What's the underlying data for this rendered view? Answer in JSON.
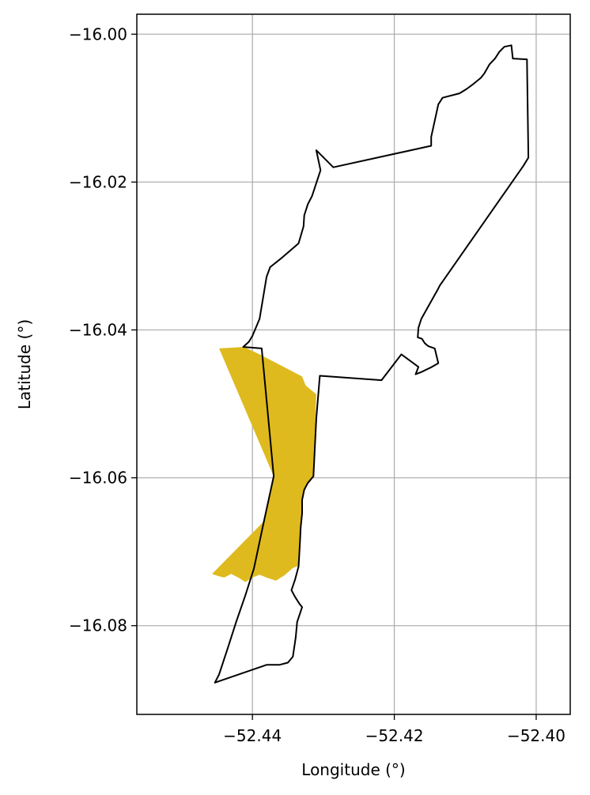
{
  "chart_data": {
    "type": "map",
    "xlabel": "Longitude (°)",
    "ylabel": "Latitude (°)",
    "xlim": [
      -52.4563,
      -52.3952
    ],
    "ylim": [
      -16.092,
      -15.9973
    ],
    "xticks": [
      -52.44,
      -52.42,
      -52.4
    ],
    "yticks": [
      -16.0,
      -16.02,
      -16.04,
      -16.06,
      -16.08
    ],
    "xtick_labels": [
      "−52.44",
      "−52.42",
      "−52.40"
    ],
    "ytick_labels": [
      "−16.00",
      "−16.02",
      "−16.04",
      "−16.06",
      "−16.08"
    ],
    "grid": true,
    "outline": {
      "color": "#000000",
      "points": [
        [
          -52.4453,
          -16.0877
        ],
        [
          -52.4447,
          -16.0866
        ],
        [
          -52.4435,
          -16.0831
        ],
        [
          -52.4423,
          -16.0795
        ],
        [
          -52.441,
          -16.0759
        ],
        [
          -52.4398,
          -16.0723
        ],
        [
          -52.4384,
          -16.066
        ],
        [
          -52.437,
          -16.0598
        ],
        [
          -52.4387,
          -16.0425
        ],
        [
          -52.4413,
          -16.0423
        ],
        [
          -52.4405,
          -16.0416
        ],
        [
          -52.44,
          -16.0408
        ],
        [
          -52.439,
          -16.0385
        ],
        [
          -52.438,
          -16.0328
        ],
        [
          -52.4375,
          -16.0315
        ],
        [
          -52.4358,
          -16.0302
        ],
        [
          -52.4335,
          -16.0283
        ],
        [
          -52.4328,
          -16.026
        ],
        [
          -52.4327,
          -16.0245
        ],
        [
          -52.4322,
          -16.023
        ],
        [
          -52.4316,
          -16.0219
        ],
        [
          -52.4304,
          -16.0184
        ],
        [
          -52.431,
          -16.0157
        ],
        [
          -52.4286,
          -16.018
        ],
        [
          -52.4148,
          -16.0151
        ],
        [
          -52.4148,
          -16.0139
        ],
        [
          -52.4138,
          -16.0095
        ],
        [
          -52.4132,
          -16.0086
        ],
        [
          -52.4108,
          -16.008
        ],
        [
          -52.4098,
          -16.0074
        ],
        [
          -52.4088,
          -16.0067
        ],
        [
          -52.4078,
          -16.0059
        ],
        [
          -52.4073,
          -16.0053
        ],
        [
          -52.4066,
          -16.0041
        ],
        [
          -52.4058,
          -16.0033
        ],
        [
          -52.4052,
          -16.0024
        ],
        [
          -52.4045,
          -16.0017
        ],
        [
          -52.4035,
          -16.0015
        ],
        [
          -52.4033,
          -16.0033
        ],
        [
          -52.4013,
          -16.0034
        ],
        [
          -52.4011,
          -16.0167
        ],
        [
          -52.4018,
          -16.0178
        ],
        [
          -52.4136,
          -16.034
        ],
        [
          -52.4138,
          -16.0344
        ],
        [
          -52.4162,
          -16.0385
        ],
        [
          -52.4166,
          -16.0397
        ],
        [
          -52.4167,
          -16.041
        ],
        [
          -52.4161,
          -16.0412
        ],
        [
          -52.4157,
          -16.0418
        ],
        [
          -52.4152,
          -16.0422
        ],
        [
          -52.4143,
          -16.0425
        ],
        [
          -52.4138,
          -16.0445
        ],
        [
          -52.4147,
          -16.045
        ],
        [
          -52.4162,
          -16.0457
        ],
        [
          -52.417,
          -16.046
        ],
        [
          -52.4166,
          -16.045
        ],
        [
          -52.419,
          -16.0433
        ],
        [
          -52.4218,
          -16.0468
        ],
        [
          -52.4305,
          -16.0462
        ],
        [
          -52.431,
          -16.052
        ],
        [
          -52.4314,
          -16.0598
        ],
        [
          -52.4322,
          -16.0607
        ],
        [
          -52.4327,
          -16.0616
        ],
        [
          -52.433,
          -16.063
        ],
        [
          -52.433,
          -16.0648
        ],
        [
          -52.4332,
          -16.0667
        ],
        [
          -52.4333,
          -16.0687
        ],
        [
          -52.4334,
          -16.0704
        ],
        [
          -52.4335,
          -16.072
        ],
        [
          -52.434,
          -16.0738
        ],
        [
          -52.4345,
          -16.0752
        ],
        [
          -52.434,
          -16.0761
        ],
        [
          -52.4334,
          -16.077
        ],
        [
          -52.433,
          -16.0775
        ],
        [
          -52.4337,
          -16.0795
        ],
        [
          -52.4339,
          -16.0816
        ],
        [
          -52.4343,
          -16.0842
        ],
        [
          -52.435,
          -16.085
        ],
        [
          -52.4362,
          -16.0853
        ],
        [
          -52.438,
          -16.0853
        ],
        [
          -52.4453,
          -16.0877
        ]
      ]
    },
    "highlight": {
      "color": "#dfba1f",
      "points": [
        [
          -52.4447,
          -16.0425
        ],
        [
          -52.4412,
          -16.0423
        ],
        [
          -52.439,
          -16.0433
        ],
        [
          -52.436,
          -16.0448
        ],
        [
          -52.433,
          -16.0463
        ],
        [
          -52.4325,
          -16.0475
        ],
        [
          -52.431,
          -16.0487
        ],
        [
          -52.4314,
          -16.0598
        ],
        [
          -52.4322,
          -16.0607
        ],
        [
          -52.4327,
          -16.0616
        ],
        [
          -52.433,
          -16.063
        ],
        [
          -52.433,
          -16.0648
        ],
        [
          -52.4332,
          -16.0667
        ],
        [
          -52.4333,
          -16.0687
        ],
        [
          -52.4334,
          -16.0704
        ],
        [
          -52.4335,
          -16.0719
        ],
        [
          -52.4343,
          -16.0722
        ],
        [
          -52.4355,
          -16.0732
        ],
        [
          -52.4367,
          -16.0739
        ],
        [
          -52.438,
          -16.0735
        ],
        [
          -52.439,
          -16.0731
        ],
        [
          -52.44,
          -16.0735
        ],
        [
          -52.441,
          -16.0741
        ],
        [
          -52.442,
          -16.0735
        ],
        [
          -52.443,
          -16.073
        ],
        [
          -52.444,
          -16.0735
        ],
        [
          -52.4448,
          -16.0733
        ],
        [
          -52.4457,
          -16.073
        ],
        [
          -52.4385,
          -16.066
        ],
        [
          -52.437,
          -16.0598
        ],
        [
          -52.4447,
          -16.0425
        ]
      ]
    }
  }
}
